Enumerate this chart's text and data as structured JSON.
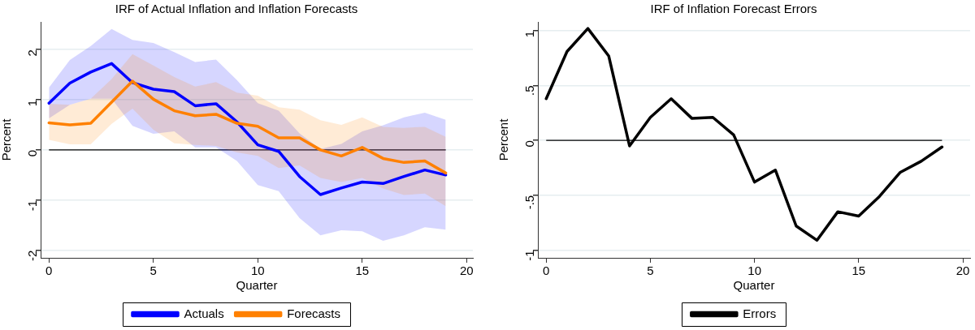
{
  "chart_data": [
    {
      "type": "line",
      "title": "IRF of Actual Inflation and Inflation Forecasts",
      "xlabel": "Quarter",
      "ylabel": "Percent",
      "x": [
        0,
        1,
        2,
        3,
        4,
        5,
        6,
        7,
        8,
        9,
        10,
        11,
        12,
        13,
        14,
        15,
        16,
        17,
        18,
        19
      ],
      "series": [
        {
          "name": "Actuals",
          "color": "#0000ff",
          "values": [
            0.93,
            1.33,
            1.55,
            1.72,
            1.34,
            1.21,
            1.16,
            0.88,
            0.92,
            0.56,
            0.1,
            -0.03,
            -0.53,
            -0.89,
            -0.76,
            -0.64,
            -0.67,
            -0.53,
            -0.4,
            -0.5
          ],
          "lower": [
            0.63,
            0.9,
            1.02,
            1.02,
            0.48,
            0.32,
            0.37,
            0.05,
            0.05,
            -0.22,
            -0.7,
            -0.82,
            -1.36,
            -1.7,
            -1.6,
            -1.62,
            -1.81,
            -1.7,
            -1.54,
            -1.59
          ],
          "upper": [
            1.24,
            1.79,
            2.07,
            2.41,
            2.19,
            2.13,
            1.95,
            1.75,
            1.8,
            1.39,
            0.93,
            0.78,
            0.33,
            0.02,
            0.12,
            0.37,
            0.49,
            0.65,
            0.74,
            0.6
          ]
        },
        {
          "name": "Forecasts",
          "color": "#ff8000",
          "values": [
            0.54,
            0.5,
            0.53,
            0.95,
            1.37,
            1.01,
            0.78,
            0.68,
            0.71,
            0.53,
            0.47,
            0.24,
            0.24,
            0.0,
            -0.12,
            0.05,
            -0.17,
            -0.25,
            -0.22,
            -0.46
          ],
          "lower": [
            0.2,
            0.11,
            0.11,
            0.52,
            0.82,
            0.4,
            0.13,
            0.1,
            0.08,
            -0.05,
            -0.12,
            -0.36,
            -0.31,
            -0.56,
            -0.64,
            -0.56,
            -0.77,
            -0.9,
            -0.87,
            -1.12
          ],
          "upper": [
            0.92,
            0.9,
            1.02,
            1.41,
            1.91,
            1.68,
            1.45,
            1.26,
            1.35,
            1.14,
            1.08,
            0.85,
            0.8,
            0.59,
            0.5,
            0.65,
            0.46,
            0.44,
            0.46,
            0.26
          ]
        }
      ],
      "xlim": [
        -0.4,
        20.3
      ],
      "xticks": [
        0,
        5,
        10,
        15,
        20
      ],
      "ylim": [
        -2.15,
        2.55
      ],
      "yticks": [
        -2,
        -1,
        0,
        1,
        2
      ],
      "grid": "y",
      "legend": "bottom",
      "ref_lines": [
        {
          "axis": "y",
          "value": 0,
          "color": "#000000"
        }
      ]
    },
    {
      "type": "line",
      "title": "IRF of Inflation Forecast Errors",
      "xlabel": "Quarter",
      "ylabel": "Percent",
      "x": [
        0,
        1,
        2,
        3,
        4,
        5,
        6,
        7,
        8,
        9,
        10,
        11,
        12,
        13,
        14,
        15,
        16,
        17,
        18,
        19
      ],
      "series": [
        {
          "name": "Errors",
          "color": "#000000",
          "values": [
            0.38,
            0.81,
            1.02,
            0.77,
            -0.05,
            0.21,
            0.38,
            0.2,
            0.21,
            0.05,
            -0.38,
            -0.27,
            -0.78,
            -0.91,
            -0.65,
            -0.69,
            -0.51,
            -0.29,
            -0.19,
            -0.06
          ]
        }
      ],
      "xlim": [
        -0.4,
        20.35
      ],
      "xticks": [
        0,
        5,
        10,
        15,
        20
      ],
      "ylim": [
        -1.07,
        1.08
      ],
      "yticks": [
        -1,
        {
          "value": -0.5,
          "label": "-.5"
        },
        0,
        {
          "value": 0.5,
          "label": ".5"
        },
        1
      ],
      "grid": "y",
      "legend": "bottom",
      "ref_lines": [
        {
          "axis": "y",
          "value": 0,
          "color": "#000000"
        }
      ]
    }
  ]
}
